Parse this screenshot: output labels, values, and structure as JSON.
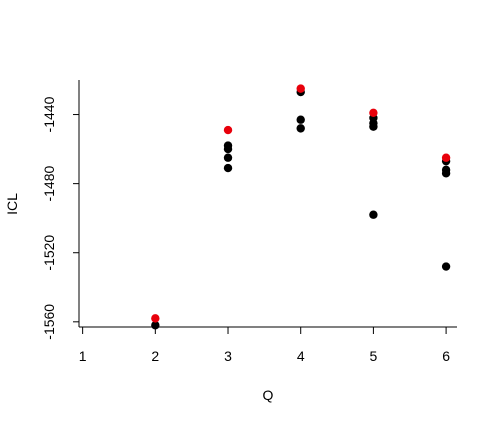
{
  "chart_data": {
    "type": "scatter",
    "title": "",
    "xlabel": "Q",
    "ylabel": "ICL",
    "xlim": [
      0.95,
      6.15
    ],
    "ylim": [
      -1563,
      -1420
    ],
    "x_ticks": [
      1,
      2,
      3,
      4,
      5,
      6
    ],
    "y_ticks": [
      -1440,
      -1480,
      -1520,
      -1560
    ],
    "grid": false,
    "legend": "none",
    "colors": {
      "points": "#000000",
      "best": "#e8000b"
    },
    "series": [
      {
        "role": "runs",
        "points": [
          {
            "x": 2,
            "y": -1562
          },
          {
            "x": 3,
            "y": -1458
          },
          {
            "x": 3,
            "y": -1460
          },
          {
            "x": 3,
            "y": -1465
          },
          {
            "x": 3,
            "y": -1471
          },
          {
            "x": 4,
            "y": -1427
          },
          {
            "x": 4,
            "y": -1443
          },
          {
            "x": 4,
            "y": -1448
          },
          {
            "x": 5,
            "y": -1442
          },
          {
            "x": 5,
            "y": -1445
          },
          {
            "x": 5,
            "y": -1447
          },
          {
            "x": 5,
            "y": -1498
          },
          {
            "x": 6,
            "y": -1467
          },
          {
            "x": 6,
            "y": -1472
          },
          {
            "x": 6,
            "y": -1474
          },
          {
            "x": 6,
            "y": -1528
          }
        ]
      },
      {
        "role": "best",
        "points": [
          {
            "x": 2,
            "y": -1558
          },
          {
            "x": 3,
            "y": -1449
          },
          {
            "x": 4,
            "y": -1425
          },
          {
            "x": 5,
            "y": -1439
          },
          {
            "x": 6,
            "y": -1465
          }
        ]
      }
    ]
  }
}
